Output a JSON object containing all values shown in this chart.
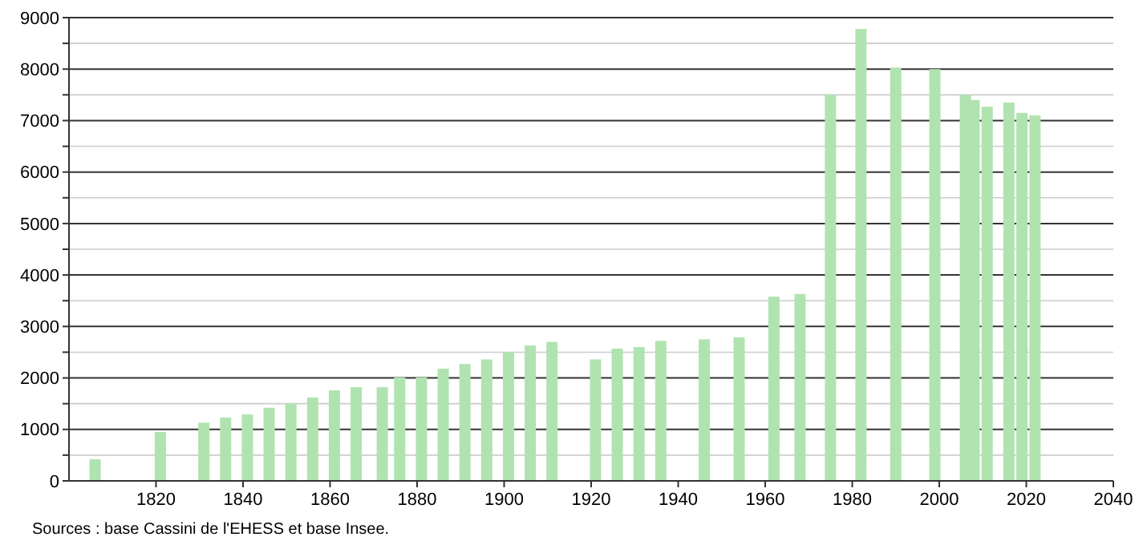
{
  "chart_data": {
    "type": "bar",
    "x": [
      1806,
      1821,
      1831,
      1836,
      1841,
      1846,
      1851,
      1856,
      1861,
      1866,
      1872,
      1876,
      1881,
      1886,
      1891,
      1896,
      1901,
      1906,
      1911,
      1921,
      1926,
      1931,
      1936,
      1946,
      1954,
      1962,
      1968,
      1975,
      1982,
      1990,
      1999,
      2006,
      2008,
      2011,
      2016,
      2019,
      2022
    ],
    "values": [
      420,
      950,
      1130,
      1230,
      1290,
      1420,
      1510,
      1620,
      1760,
      1820,
      1820,
      2010,
      2010,
      2180,
      2270,
      2360,
      2500,
      2630,
      2700,
      2360,
      2570,
      2600,
      2720,
      2750,
      2790,
      3580,
      3630,
      7500,
      8780,
      8030,
      8000,
      7500,
      7400,
      7270,
      7350,
      7150,
      7100
    ],
    "color": "#b0e3b0",
    "xlim": [
      1800,
      2040
    ],
    "xticks": [
      1820,
      1840,
      1860,
      1880,
      1900,
      1920,
      1940,
      1960,
      1980,
      2000,
      2020,
      2040
    ],
    "ylim": [
      0,
      9000
    ],
    "yticks": [
      0,
      {
        "value": 500,
        "label": null
      },
      1000,
      {
        "value": 1500,
        "label": null
      },
      2000,
      {
        "value": 2500,
        "label": null
      },
      3000,
      {
        "value": 3500,
        "label": null
      },
      4000,
      {
        "value": 4500,
        "label": null
      },
      5000,
      {
        "value": 5500,
        "label": null
      },
      6000,
      {
        "value": 6500,
        "label": null
      },
      7000,
      {
        "value": 7500,
        "label": null
      },
      8000,
      {
        "value": 8500,
        "label": null
      },
      9000
    ],
    "grid": "y",
    "annotations": [
      "Sources : base Cassini de l'EHESS et base Insee."
    ]
  }
}
